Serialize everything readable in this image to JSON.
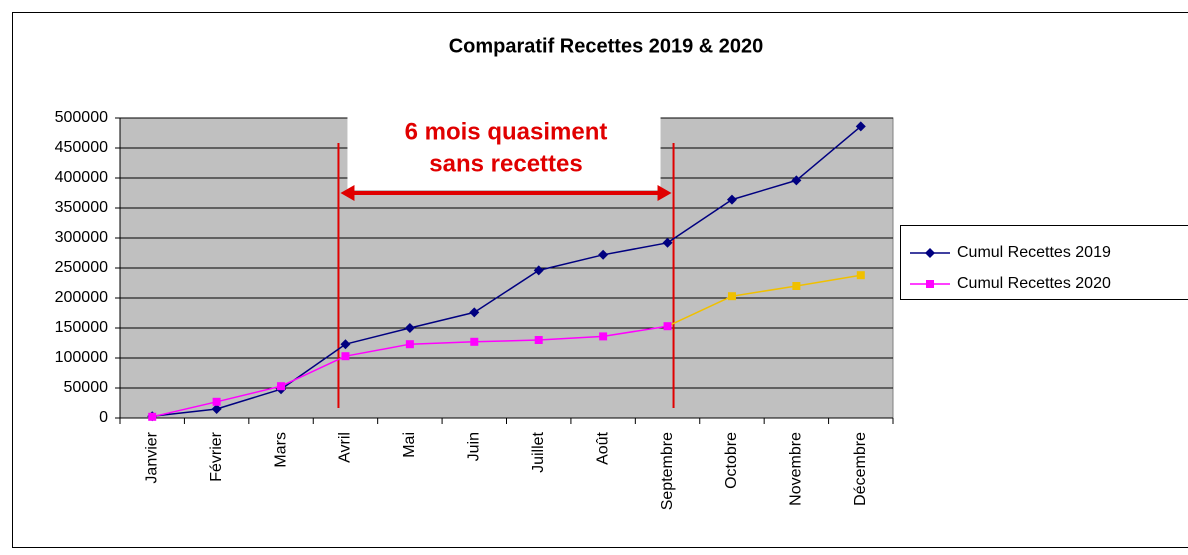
{
  "chart_data": {
    "type": "line",
    "title": "Comparatif Recettes 2019 & 2020",
    "categories": [
      "Janvier",
      "Février",
      "Mars",
      "Avril",
      "Mai",
      "Juin",
      "Juillet",
      "Août",
      "Septembre",
      "Octobre",
      "Novembre",
      "Décembre"
    ],
    "series": [
      {
        "name": "Cumul Recettes 2019",
        "color": "#000080",
        "marker": "diamond",
        "values": [
          3000,
          15000,
          48000,
          123000,
          150000,
          176000,
          246000,
          272000,
          292000,
          364000,
          396000,
          486000
        ]
      },
      {
        "name": "Cumul Recettes 2020",
        "color": "#ff00ff",
        "marker": "square",
        "point_colors": [
          "#ff00ff",
          "#ff00ff",
          "#ff00ff",
          "#ff00ff",
          "#ff00ff",
          "#ff00ff",
          "#ff00ff",
          "#ff00ff",
          "#ff00ff",
          "#f0c000",
          "#f0c000",
          "#f0c000"
        ],
        "values": [
          2000,
          27000,
          53000,
          103000,
          123000,
          127000,
          130000,
          136000,
          153000,
          203000,
          220000,
          238000
        ]
      }
    ],
    "ylim": [
      0,
      500000
    ],
    "yticks": [
      0,
      50000,
      100000,
      150000,
      200000,
      250000,
      300000,
      350000,
      400000,
      450000,
      500000
    ],
    "grid": true,
    "plot_background": "#c0c0c0",
    "legend": "right",
    "annotation": {
      "lines": [
        "6 mois quasiment",
        "sans recettes"
      ],
      "from": "Avril",
      "to": "Septembre",
      "color": "#e00000"
    }
  }
}
